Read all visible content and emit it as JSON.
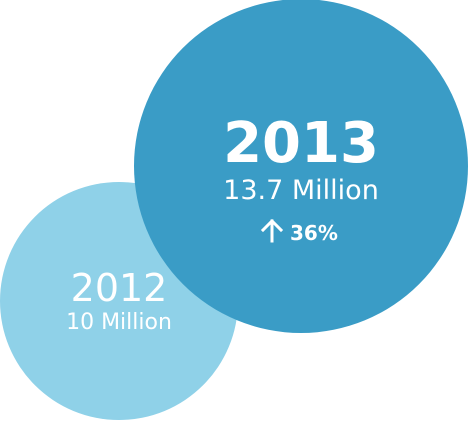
{
  "chart_data": {
    "type": "bubble",
    "series": [
      {
        "year": "2012",
        "value_label": "10 Million",
        "value_millions": 10,
        "color": "#8fd1e8"
      },
      {
        "year": "2013",
        "value_label": "13.7 Million",
        "value_millions": 13.7,
        "change": "36%",
        "change_direction": "up",
        "color": "#3a9cc6"
      }
    ]
  }
}
